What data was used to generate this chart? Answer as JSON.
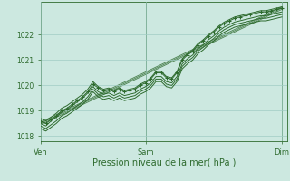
{
  "title": "",
  "xlabel": "Pression niveau de la mer( hPa )",
  "bg_color": "#cce8e0",
  "grid_color": "#a0ccc4",
  "line_color": "#2d6a2d",
  "xlim": [
    0,
    47
  ],
  "ylim": [
    1017.8,
    1023.3
  ],
  "yticks": [
    1018,
    1019,
    1020,
    1021,
    1022
  ],
  "xtick_labels": [
    "Ven",
    "Sam",
    "Dim"
  ],
  "xtick_positions": [
    0,
    20,
    46
  ],
  "vlines": [
    0,
    20,
    46
  ],
  "series_marker": [
    [
      1018.6,
      1018.5,
      1018.65,
      1018.8,
      1019.0,
      1019.1,
      1019.25,
      1019.4,
      1019.55,
      1019.75,
      1020.05,
      1019.9,
      1019.8,
      1019.85,
      1019.75,
      1019.85,
      1019.75,
      1019.8,
      1019.85,
      1020.0,
      1020.1,
      1020.25,
      1020.5,
      1020.5,
      1020.3,
      1020.25,
      1020.5,
      1021.0,
      1021.2,
      1021.35,
      1021.6,
      1021.75,
      1021.95,
      1022.1,
      1022.3,
      1022.45,
      1022.55,
      1022.65,
      1022.7,
      1022.75,
      1022.8,
      1022.85,
      1022.9,
      1022.9,
      1022.95,
      1023.0,
      1023.05
    ]
  ],
  "series_plain": [
    [
      1018.5,
      1018.4,
      1018.6,
      1018.75,
      1018.95,
      1019.05,
      1019.2,
      1019.35,
      1019.5,
      1019.7,
      1019.95,
      1019.75,
      1019.65,
      1019.7,
      1019.6,
      1019.7,
      1019.6,
      1019.65,
      1019.7,
      1019.85,
      1019.95,
      1020.1,
      1020.35,
      1020.35,
      1020.15,
      1020.1,
      1020.35,
      1020.85,
      1021.05,
      1021.2,
      1021.45,
      1021.6,
      1021.8,
      1021.95,
      1022.15,
      1022.3,
      1022.4,
      1022.5,
      1022.55,
      1022.6,
      1022.65,
      1022.7,
      1022.75,
      1022.75,
      1022.8,
      1022.85,
      1022.9
    ],
    [
      1018.7,
      1018.6,
      1018.75,
      1018.9,
      1019.1,
      1019.2,
      1019.35,
      1019.5,
      1019.65,
      1019.85,
      1020.15,
      1019.95,
      1019.85,
      1019.9,
      1019.8,
      1019.9,
      1019.8,
      1019.85,
      1019.9,
      1020.05,
      1020.15,
      1020.3,
      1020.55,
      1020.55,
      1020.35,
      1020.3,
      1020.55,
      1021.05,
      1021.25,
      1021.4,
      1021.65,
      1021.8,
      1022.0,
      1022.15,
      1022.35,
      1022.5,
      1022.6,
      1022.7,
      1022.75,
      1022.8,
      1022.85,
      1022.9,
      1022.95,
      1022.95,
      1023.0,
      1023.05,
      1023.1
    ],
    [
      1018.4,
      1018.3,
      1018.45,
      1018.6,
      1018.8,
      1018.9,
      1019.05,
      1019.2,
      1019.35,
      1019.55,
      1019.85,
      1019.65,
      1019.55,
      1019.6,
      1019.5,
      1019.6,
      1019.5,
      1019.55,
      1019.6,
      1019.75,
      1019.85,
      1020.0,
      1020.25,
      1020.25,
      1020.05,
      1020.0,
      1020.25,
      1020.75,
      1020.95,
      1021.1,
      1021.35,
      1021.5,
      1021.7,
      1021.85,
      1022.05,
      1022.2,
      1022.3,
      1022.4,
      1022.45,
      1022.5,
      1022.55,
      1022.6,
      1022.65,
      1022.65,
      1022.7,
      1022.75,
      1022.8
    ],
    [
      1018.3,
      1018.2,
      1018.35,
      1018.5,
      1018.7,
      1018.8,
      1018.95,
      1019.1,
      1019.25,
      1019.45,
      1019.75,
      1019.55,
      1019.45,
      1019.5,
      1019.4,
      1019.5,
      1019.4,
      1019.45,
      1019.5,
      1019.65,
      1019.75,
      1019.9,
      1020.15,
      1020.15,
      1019.95,
      1019.9,
      1020.15,
      1020.65,
      1020.85,
      1021.0,
      1021.25,
      1021.4,
      1021.6,
      1021.75,
      1021.95,
      1022.1,
      1022.2,
      1022.3,
      1022.35,
      1022.4,
      1022.45,
      1022.5,
      1022.55,
      1022.55,
      1022.6,
      1022.65,
      1022.7
    ]
  ],
  "straight_line": [
    1018.5,
    1023.05
  ],
  "markersize": 2.8,
  "linewidth": 0.7,
  "marker": "+"
}
